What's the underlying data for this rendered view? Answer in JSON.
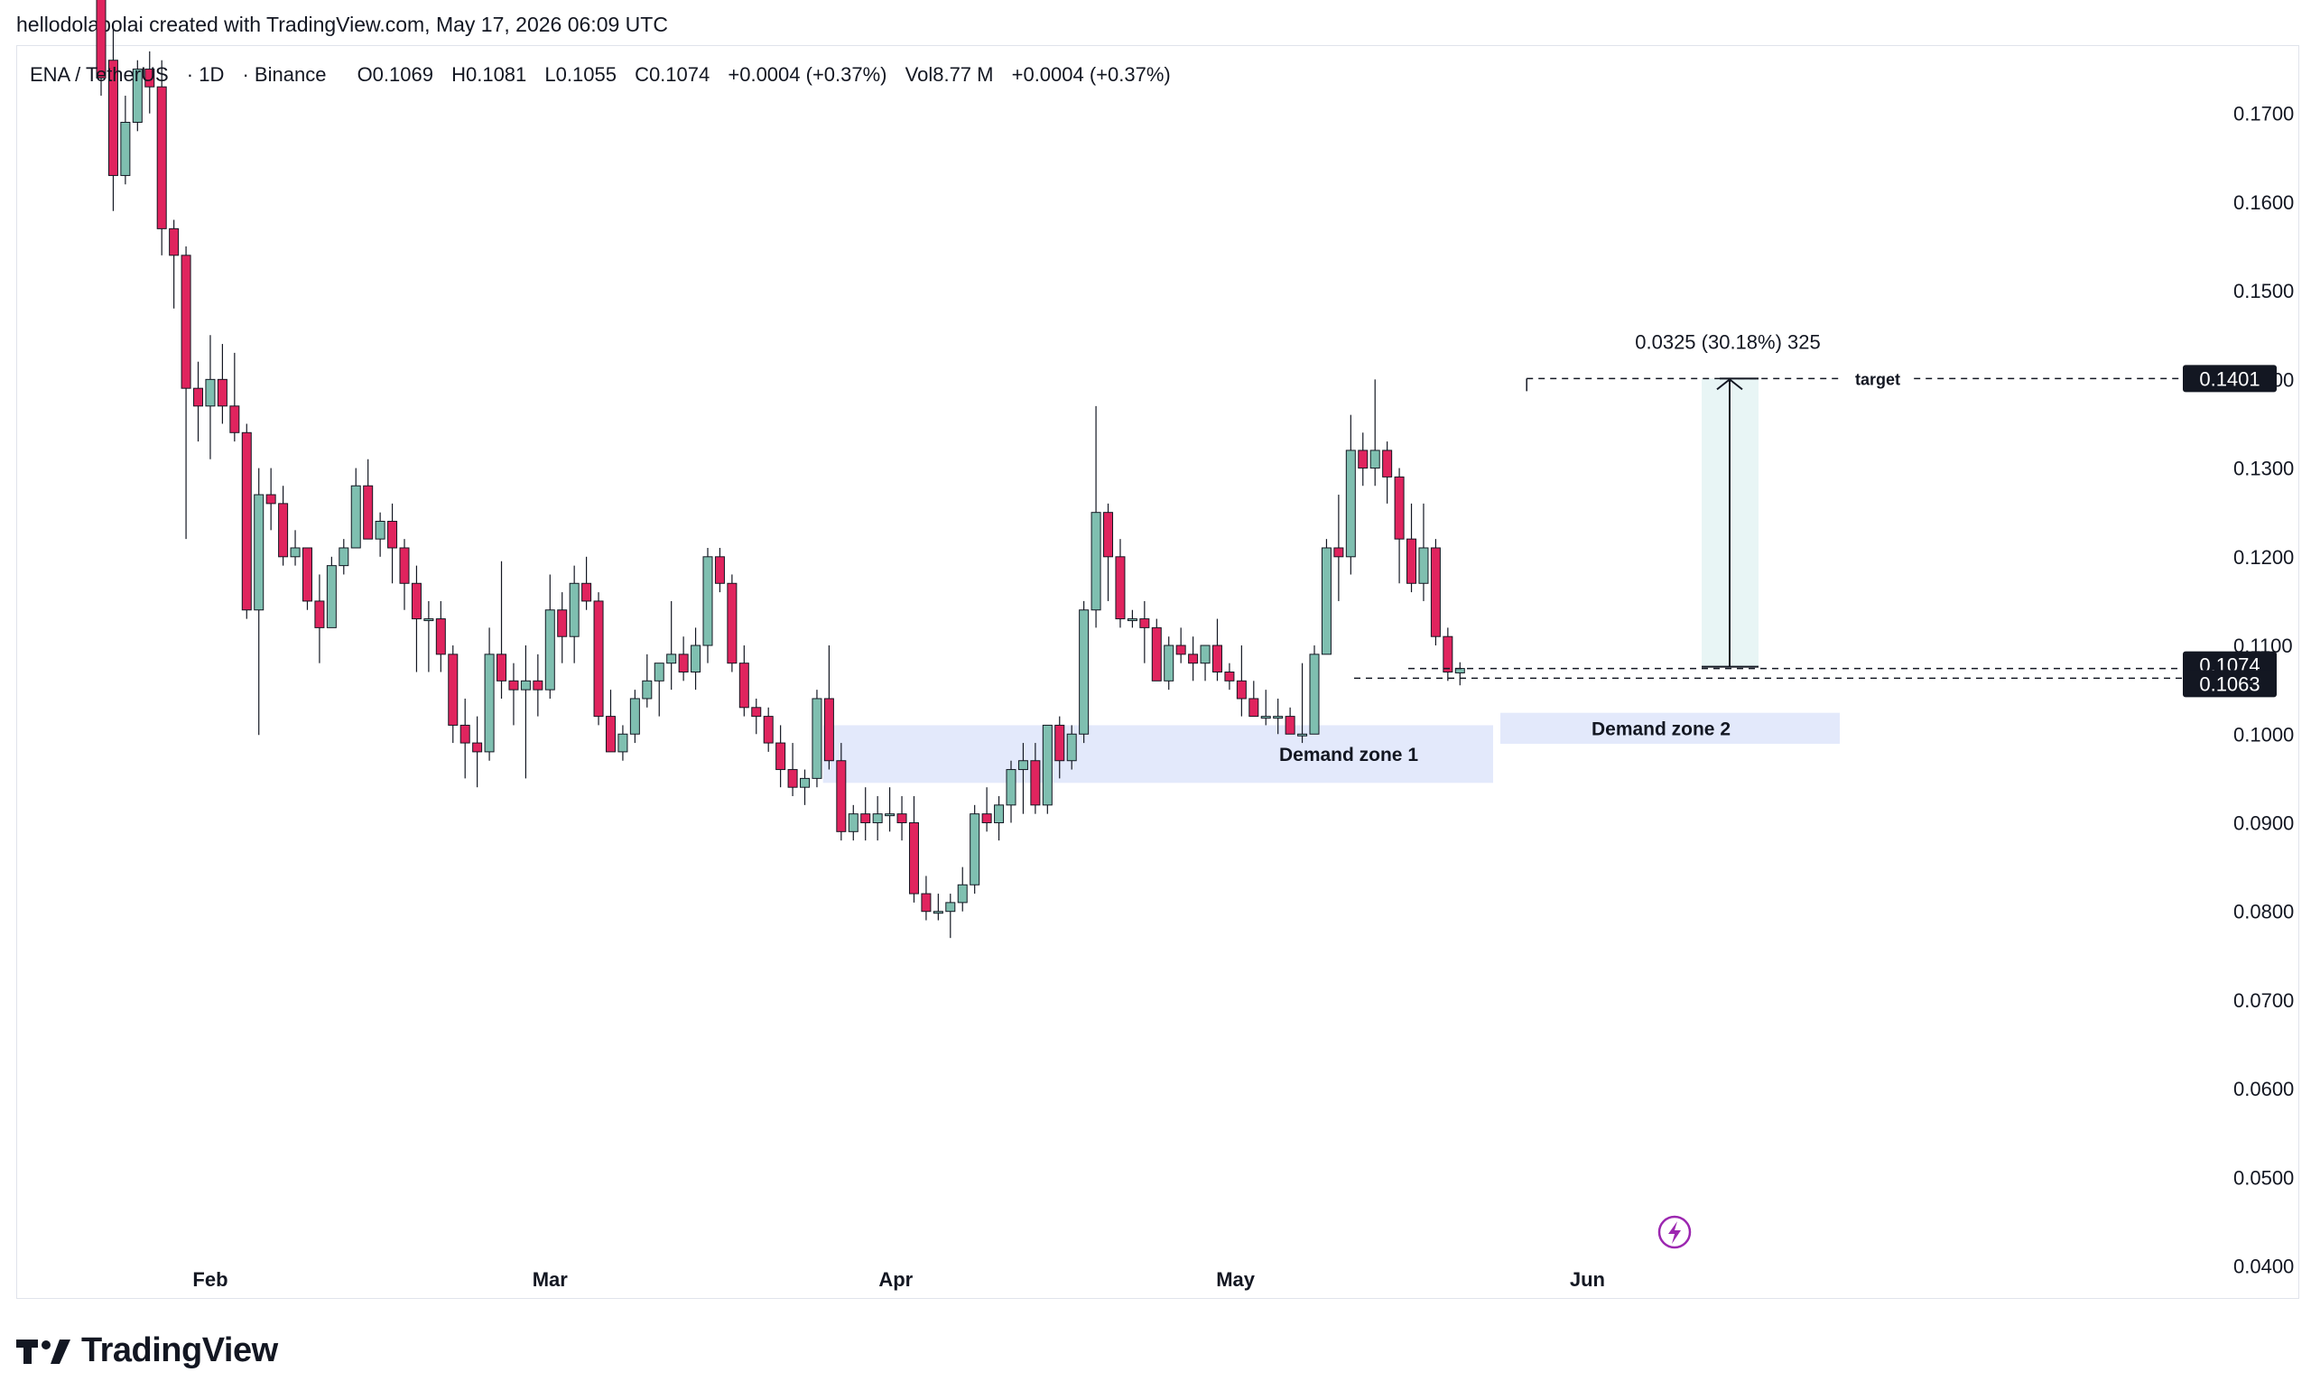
{
  "caption": "hellodolapolai created with TradingView.com, May 17, 2026 06:09 UTC",
  "legend": {
    "symbol": "ENA / TetherUS",
    "interval": "1D",
    "exchange": "Binance",
    "open": "O0.1069",
    "high": "H0.1081",
    "low": "L0.1055",
    "close": "C0.1074",
    "change": "+0.0004 (+0.37%)",
    "volume": "Vol8.77 M",
    "vol_change": "+0.0004 (+0.37%)"
  },
  "brand": "TradingView",
  "colors": {
    "up": "#7fbfb0",
    "down": "#e0245e",
    "zone": "#e3e9fb",
    "measure": "#e8f5f5"
  },
  "chart_data": {
    "type": "candlestick",
    "x_ticks": [
      "Feb",
      "Mar",
      "Apr",
      "May",
      "Jun"
    ],
    "y_ticks": [
      "0.1700",
      "0.1600",
      "0.1500",
      "0.1400",
      "0.1300",
      "0.1200",
      "0.1100",
      "0.1000",
      "0.0900",
      "0.0800",
      "0.0700",
      "0.0600",
      "0.0500",
      "0.0400"
    ],
    "ylim": [
      0.0365,
      0.1775
    ],
    "price_labels": [
      "0.1401",
      "0.1074",
      "0.1063"
    ],
    "annotations": {
      "measure_text": "0.0325 (30.18%) 325",
      "target_label": "target",
      "zones": [
        "Demand zone 1",
        "Demand zone 2"
      ]
    },
    "ohlc": [
      [
        0.187,
        0.19,
        0.172,
        0.174
      ],
      [
        0.176,
        0.18,
        0.159,
        0.163
      ],
      [
        0.163,
        0.172,
        0.162,
        0.169
      ],
      [
        0.169,
        0.176,
        0.168,
        0.175
      ],
      [
        0.175,
        0.177,
        0.17,
        0.173
      ],
      [
        0.173,
        0.176,
        0.154,
        0.157
      ],
      [
        0.157,
        0.158,
        0.148,
        0.154
      ],
      [
        0.154,
        0.155,
        0.122,
        0.139
      ],
      [
        0.139,
        0.142,
        0.133,
        0.137
      ],
      [
        0.137,
        0.145,
        0.131,
        0.14
      ],
      [
        0.14,
        0.144,
        0.135,
        0.137
      ],
      [
        0.137,
        0.143,
        0.133,
        0.134
      ],
      [
        0.134,
        0.135,
        0.113,
        0.114
      ],
      [
        0.114,
        0.13,
        0.0999,
        0.127
      ],
      [
        0.127,
        0.13,
        0.123,
        0.126
      ],
      [
        0.126,
        0.128,
        0.119,
        0.12
      ],
      [
        0.12,
        0.123,
        0.119,
        0.121
      ],
      [
        0.121,
        0.121,
        0.114,
        0.115
      ],
      [
        0.115,
        0.118,
        0.108,
        0.112
      ],
      [
        0.112,
        0.12,
        0.112,
        0.119
      ],
      [
        0.119,
        0.122,
        0.118,
        0.121
      ],
      [
        0.121,
        0.13,
        0.121,
        0.128
      ],
      [
        0.128,
        0.131,
        0.122,
        0.122
      ],
      [
        0.122,
        0.125,
        0.12,
        0.124
      ],
      [
        0.124,
        0.126,
        0.117,
        0.121
      ],
      [
        0.121,
        0.122,
        0.114,
        0.117
      ],
      [
        0.117,
        0.119,
        0.107,
        0.113
      ],
      [
        0.113,
        0.115,
        0.107,
        0.113
      ],
      [
        0.113,
        0.115,
        0.107,
        0.109
      ],
      [
        0.109,
        0.11,
        0.099,
        0.101
      ],
      [
        0.101,
        0.104,
        0.095,
        0.099
      ],
      [
        0.099,
        0.102,
        0.094,
        0.098
      ],
      [
        0.098,
        0.112,
        0.097,
        0.109
      ],
      [
        0.109,
        0.1195,
        0.104,
        0.106
      ],
      [
        0.106,
        0.108,
        0.101,
        0.105
      ],
      [
        0.105,
        0.11,
        0.095,
        0.106
      ],
      [
        0.106,
        0.109,
        0.102,
        0.105
      ],
      [
        0.105,
        0.118,
        0.104,
        0.114
      ],
      [
        0.114,
        0.116,
        0.108,
        0.111
      ],
      [
        0.111,
        0.119,
        0.108,
        0.117
      ],
      [
        0.117,
        0.12,
        0.114,
        0.115
      ],
      [
        0.115,
        0.116,
        0.101,
        0.102
      ],
      [
        0.102,
        0.105,
        0.098,
        0.098
      ],
      [
        0.098,
        0.101,
        0.097,
        0.1
      ],
      [
        0.1,
        0.105,
        0.099,
        0.104
      ],
      [
        0.104,
        0.109,
        0.103,
        0.106
      ],
      [
        0.106,
        0.108,
        0.102,
        0.108
      ],
      [
        0.108,
        0.115,
        0.105,
        0.109
      ],
      [
        0.109,
        0.111,
        0.106,
        0.107
      ],
      [
        0.107,
        0.112,
        0.105,
        0.11
      ],
      [
        0.11,
        0.121,
        0.108,
        0.12
      ],
      [
        0.12,
        0.121,
        0.116,
        0.117
      ],
      [
        0.117,
        0.118,
        0.107,
        0.108
      ],
      [
        0.108,
        0.11,
        0.102,
        0.103
      ],
      [
        0.103,
        0.104,
        0.1,
        0.102
      ],
      [
        0.102,
        0.103,
        0.098,
        0.099
      ],
      [
        0.099,
        0.101,
        0.094,
        0.096
      ],
      [
        0.096,
        0.099,
        0.093,
        0.094
      ],
      [
        0.094,
        0.096,
        0.092,
        0.095
      ],
      [
        0.095,
        0.105,
        0.094,
        0.104
      ],
      [
        0.104,
        0.11,
        0.096,
        0.097
      ],
      [
        0.097,
        0.099,
        0.088,
        0.089
      ],
      [
        0.089,
        0.092,
        0.088,
        0.091
      ],
      [
        0.091,
        0.094,
        0.088,
        0.09
      ],
      [
        0.09,
        0.093,
        0.088,
        0.091
      ],
      [
        0.091,
        0.094,
        0.089,
        0.091
      ],
      [
        0.091,
        0.093,
        0.088,
        0.09
      ],
      [
        0.09,
        0.093,
        0.081,
        0.082
      ],
      [
        0.082,
        0.084,
        0.079,
        0.08
      ],
      [
        0.08,
        0.082,
        0.079,
        0.08
      ],
      [
        0.08,
        0.082,
        0.077,
        0.081
      ],
      [
        0.081,
        0.085,
        0.08,
        0.083
      ],
      [
        0.083,
        0.092,
        0.082,
        0.091
      ],
      [
        0.091,
        0.094,
        0.089,
        0.09
      ],
      [
        0.09,
        0.093,
        0.088,
        0.092
      ],
      [
        0.092,
        0.097,
        0.09,
        0.096
      ],
      [
        0.096,
        0.099,
        0.091,
        0.097
      ],
      [
        0.097,
        0.099,
        0.091,
        0.092
      ],
      [
        0.092,
        0.101,
        0.091,
        0.101
      ],
      [
        0.101,
        0.102,
        0.095,
        0.097
      ],
      [
        0.097,
        0.101,
        0.096,
        0.1
      ],
      [
        0.1,
        0.115,
        0.099,
        0.114
      ],
      [
        0.114,
        0.137,
        0.112,
        0.125
      ],
      [
        0.125,
        0.126,
        0.115,
        0.12
      ],
      [
        0.12,
        0.122,
        0.112,
        0.113
      ],
      [
        0.113,
        0.114,
        0.112,
        0.113
      ],
      [
        0.113,
        0.115,
        0.108,
        0.112
      ],
      [
        0.112,
        0.113,
        0.106,
        0.106
      ],
      [
        0.106,
        0.111,
        0.105,
        0.11
      ],
      [
        0.11,
        0.112,
        0.108,
        0.109
      ],
      [
        0.109,
        0.111,
        0.106,
        0.108
      ],
      [
        0.108,
        0.11,
        0.106,
        0.11
      ],
      [
        0.11,
        0.113,
        0.106,
        0.107
      ],
      [
        0.107,
        0.108,
        0.105,
        0.106
      ],
      [
        0.106,
        0.11,
        0.102,
        0.104
      ],
      [
        0.104,
        0.106,
        0.102,
        0.102
      ],
      [
        0.102,
        0.105,
        0.101,
        0.102
      ],
      [
        0.102,
        0.104,
        0.1,
        0.102
      ],
      [
        0.102,
        0.103,
        0.1,
        0.1
      ],
      [
        0.1,
        0.108,
        0.099,
        0.1
      ],
      [
        0.1,
        0.11,
        0.1,
        0.109
      ],
      [
        0.109,
        0.122,
        0.109,
        0.121
      ],
      [
        0.121,
        0.127,
        0.115,
        0.12
      ],
      [
        0.12,
        0.136,
        0.118,
        0.132
      ],
      [
        0.132,
        0.134,
        0.128,
        0.13
      ],
      [
        0.13,
        0.14,
        0.128,
        0.132
      ],
      [
        0.132,
        0.133,
        0.126,
        0.129
      ],
      [
        0.129,
        0.13,
        0.117,
        0.122
      ],
      [
        0.122,
        0.126,
        0.116,
        0.117
      ],
      [
        0.117,
        0.126,
        0.115,
        0.121
      ],
      [
        0.121,
        0.122,
        0.11,
        0.111
      ],
      [
        0.111,
        0.112,
        0.106,
        0.107
      ],
      [
        0.1069,
        0.1081,
        0.1055,
        0.1074
      ]
    ]
  }
}
